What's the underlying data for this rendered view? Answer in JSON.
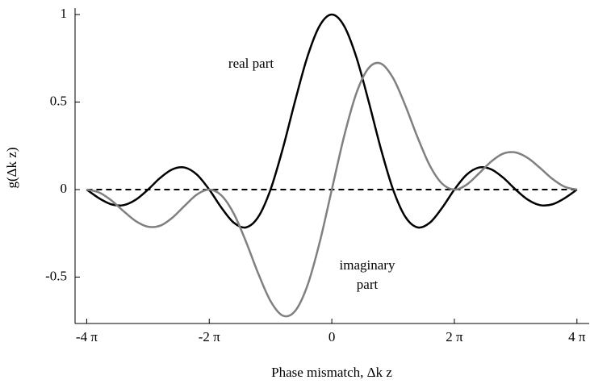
{
  "chart_data": {
    "type": "line",
    "x_label": "Phase mismatch, Δk z",
    "y_label": "g(Δk z)",
    "x": [
      -4,
      -3.8,
      -3.6,
      -3.4,
      -3.2,
      -3,
      -2.8,
      -2.6,
      -2.4,
      -2.2,
      -2,
      -1.8,
      -1.6,
      -1.4,
      -1.2,
      -1,
      -0.8,
      -0.6,
      -0.4,
      -0.2,
      0,
      0.2,
      0.4,
      0.6,
      0.8,
      1,
      1.2,
      1.4,
      1.6,
      1.8,
      2,
      2.2,
      2.4,
      2.6,
      2.8,
      3,
      3.2,
      3.4,
      3.6,
      3.8,
      4
    ],
    "series": [
      {
        "name": "real part",
        "color": "#000000",
        "values": [
          0,
          -0.049,
          -0.084,
          -0.089,
          -0.058,
          0,
          0.067,
          0.116,
          0.126,
          0.085,
          0,
          -0.104,
          -0.189,
          -0.216,
          -0.156,
          0,
          0.234,
          0.505,
          0.757,
          0.935,
          1,
          0.935,
          0.757,
          0.505,
          0.234,
          0,
          -0.156,
          -0.216,
          -0.189,
          -0.104,
          0,
          0.085,
          0.126,
          0.116,
          0.067,
          0,
          -0.058,
          -0.089,
          -0.084,
          -0.049,
          0
        ]
      },
      {
        "name": "imaginary part",
        "color": "#808080",
        "values": [
          0,
          -0.016,
          -0.061,
          -0.123,
          -0.18,
          -0.212,
          -0.206,
          -0.16,
          -0.092,
          -0.028,
          0,
          -0.034,
          -0.137,
          -0.298,
          -0.48,
          -0.637,
          -0.72,
          -0.694,
          -0.55,
          -0.304,
          0,
          0.304,
          0.55,
          0.694,
          0.72,
          0.637,
          0.48,
          0.298,
          0.137,
          0.034,
          0,
          0.028,
          0.092,
          0.16,
          0.206,
          0.212,
          0.18,
          0.123,
          0.061,
          0.016,
          0
        ]
      }
    ],
    "annotations": [
      [
        "real part"
      ],
      [
        "imaginary",
        "part"
      ]
    ],
    "hline": 0,
    "xlim": [
      -4.19,
      4.2
    ],
    "ylim": [
      -0.765,
      1.037
    ],
    "xticks": [
      {
        "value": -4,
        "label": "-4 π"
      },
      {
        "value": -2,
        "label": "-2 π"
      },
      0,
      {
        "value": 2,
        "label": "2 π"
      },
      {
        "value": 4,
        "label": "4 π"
      }
    ],
    "yticks": [
      {
        "value": -0.5,
        "label": "-0.5"
      },
      0,
      0.5,
      1
    ]
  }
}
